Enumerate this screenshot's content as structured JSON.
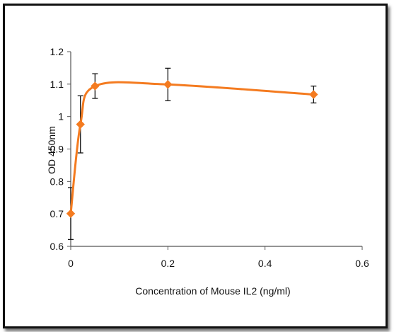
{
  "chart_data": {
    "type": "scatter",
    "title": "",
    "xlabel": "Concentration of Mouse IL2 (ng/ml)",
    "ylabel": "OD 450nm",
    "xlim": [
      0,
      0.6
    ],
    "ylim": [
      0.6,
      1.2
    ],
    "x_ticks": [
      "0",
      "0.2",
      "0.4",
      "0.6"
    ],
    "y_ticks": [
      "0.6",
      "0.7",
      "0.8",
      "0.9",
      "1",
      "1.1",
      "1.2"
    ],
    "grid": false,
    "legend": "none",
    "smoothed_line": true,
    "series": [
      {
        "color": "#f47b20",
        "marker": "diamond",
        "x": [
          0,
          0.02,
          0.05,
          0.2,
          0.5
        ],
        "y": [
          0.701,
          0.976,
          1.094,
          1.099,
          1.068
        ],
        "error": [
          0.08,
          0.088,
          0.038,
          0.05,
          0.026
        ]
      }
    ]
  }
}
